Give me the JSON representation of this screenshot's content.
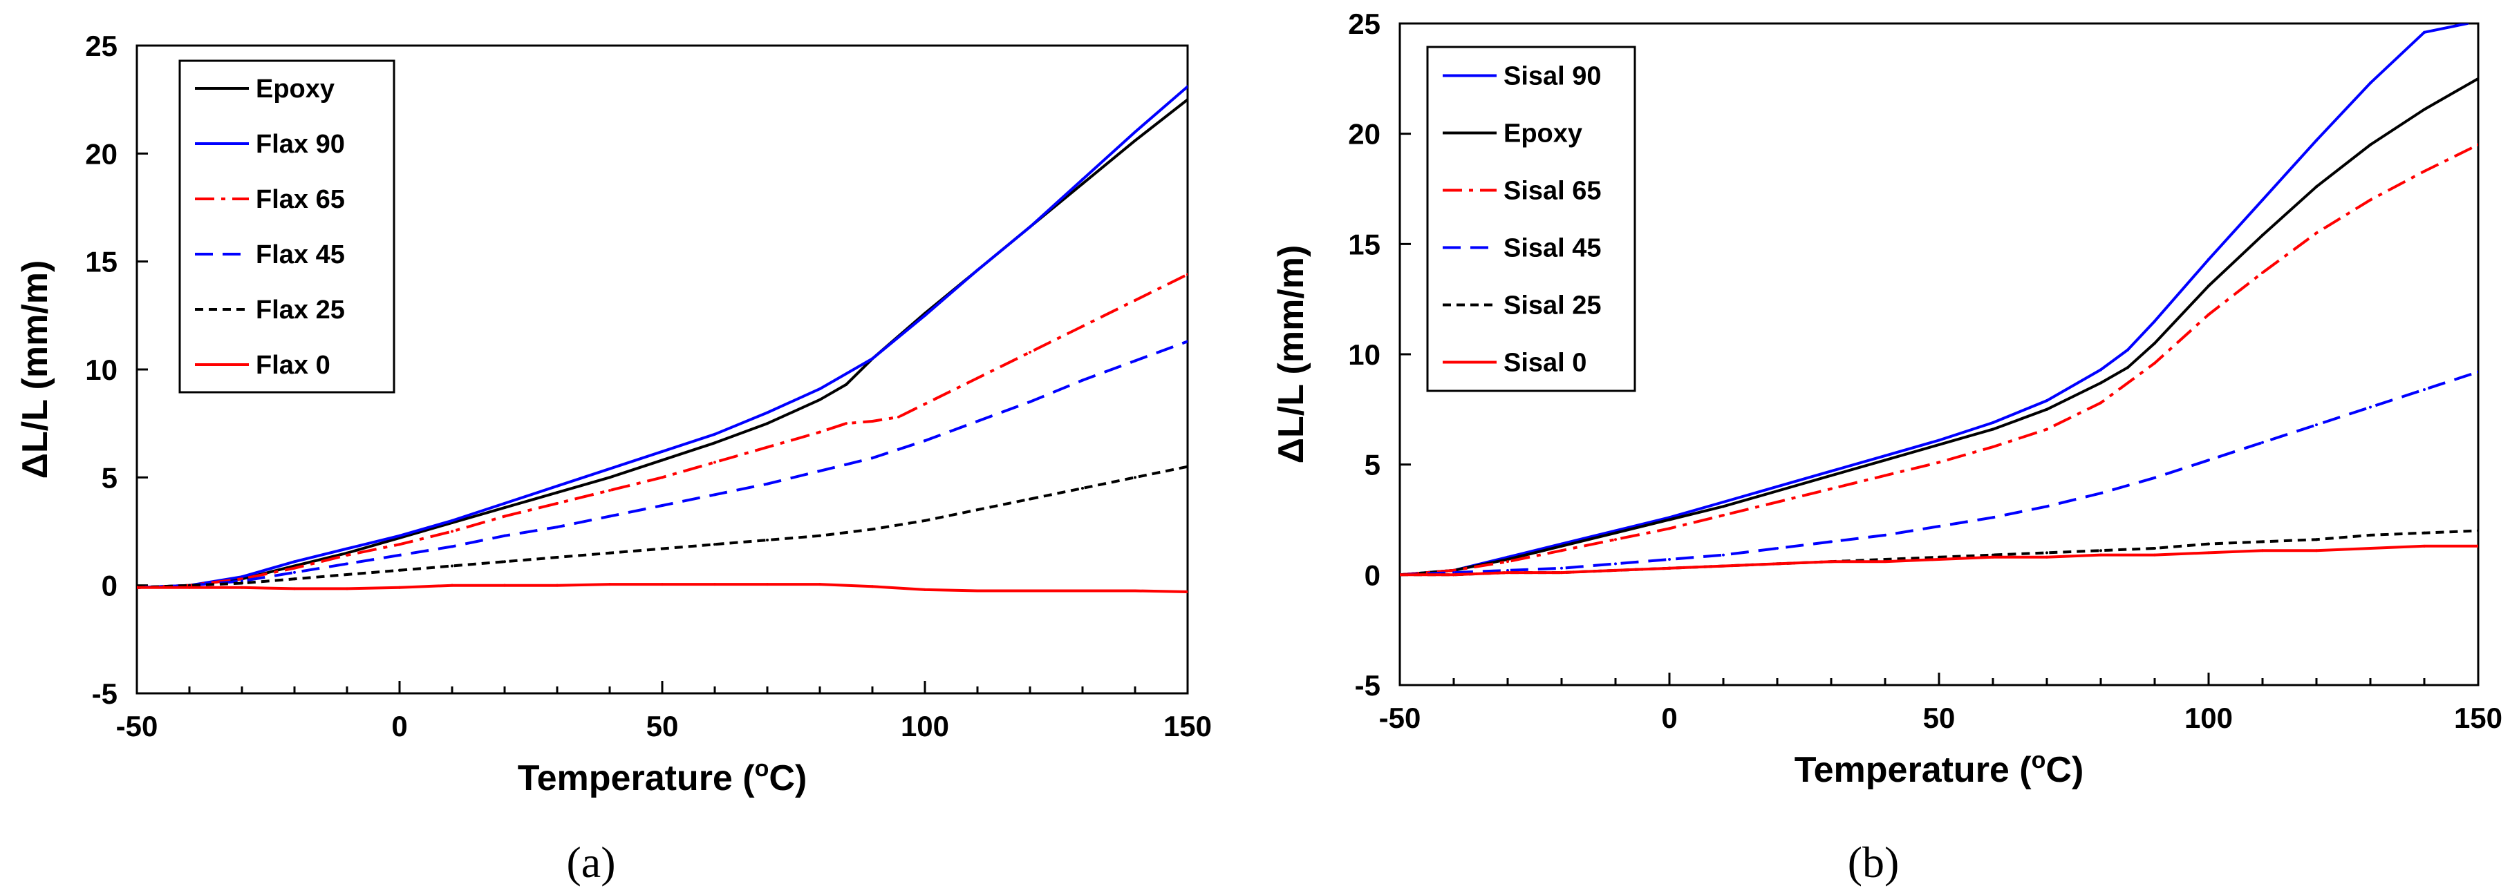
{
  "chart_data": [
    {
      "type": "line",
      "panel_label": "(a)",
      "xlabel": "Temperature (",
      "xlabel_sup": "o",
      "xlabel_end": "C)",
      "ylabel": "ΔL/L (mm/m)",
      "xlim": [
        -50,
        150
      ],
      "ylim": [
        -5,
        25
      ],
      "xticks": [
        -50,
        0,
        50,
        100,
        150
      ],
      "yticks": [
        -5,
        0,
        5,
        10,
        15,
        20,
        25
      ],
      "xtick_labels": [
        "-50",
        "0",
        "50",
        "100",
        "150"
      ],
      "ytick_labels": [
        "-5",
        "0",
        "5",
        "10",
        "15",
        "20",
        "25"
      ],
      "legend_position": "top-left",
      "series": [
        {
          "name": "Epoxy",
          "color": "#000000",
          "dash": "solid",
          "x": [
            -50,
            -40,
            -30,
            -20,
            -10,
            0,
            10,
            20,
            30,
            40,
            50,
            60,
            70,
            80,
            85,
            90,
            100,
            110,
            120,
            130,
            140,
            150
          ],
          "y": [
            -0.1,
            0,
            0.3,
            0.9,
            1.5,
            2.2,
            2.9,
            3.6,
            4.3,
            5.0,
            5.8,
            6.6,
            7.5,
            8.6,
            9.3,
            10.5,
            12.6,
            14.6,
            16.6,
            18.6,
            20.6,
            22.5
          ]
        },
        {
          "name": "Flax 90",
          "color": "#0000ff",
          "dash": "solid",
          "x": [
            -50,
            -40,
            -30,
            -20,
            -10,
            0,
            10,
            20,
            30,
            40,
            50,
            60,
            70,
            80,
            90,
            100,
            110,
            120,
            130,
            140,
            150
          ],
          "y": [
            -0.1,
            0,
            0.4,
            1.1,
            1.7,
            2.3,
            3.0,
            3.8,
            4.6,
            5.4,
            6.2,
            7.0,
            8.0,
            9.1,
            10.5,
            12.5,
            14.6,
            16.6,
            18.8,
            21.0,
            23.1
          ]
        },
        {
          "name": "Flax 65",
          "color": "#ff0000",
          "dash": "dashdot",
          "x": [
            -50,
            -40,
            -30,
            -20,
            -10,
            0,
            10,
            20,
            30,
            40,
            50,
            60,
            70,
            80,
            85,
            90,
            95,
            100,
            110,
            120,
            130,
            140,
            150
          ],
          "y": [
            -0.1,
            0,
            0.3,
            0.8,
            1.4,
            1.9,
            2.5,
            3.2,
            3.8,
            4.4,
            5.0,
            5.7,
            6.4,
            7.1,
            7.5,
            7.6,
            7.8,
            8.4,
            9.6,
            10.8,
            12.0,
            13.2,
            14.4
          ]
        },
        {
          "name": "Flax 45",
          "color": "#0000ff",
          "dash": "dashed",
          "x": [
            -50,
            -40,
            -30,
            -20,
            -10,
            0,
            10,
            20,
            30,
            40,
            50,
            60,
            70,
            80,
            90,
            100,
            110,
            120,
            130,
            140,
            150
          ],
          "y": [
            -0.1,
            0,
            0.2,
            0.6,
            1.0,
            1.4,
            1.8,
            2.3,
            2.7,
            3.2,
            3.7,
            4.2,
            4.7,
            5.3,
            5.9,
            6.7,
            7.6,
            8.5,
            9.5,
            10.4,
            11.3
          ]
        },
        {
          "name": "Flax 25",
          "color": "#000000",
          "dash": "dotted",
          "x": [
            -50,
            -40,
            -30,
            -20,
            -10,
            0,
            10,
            20,
            30,
            40,
            50,
            60,
            70,
            80,
            90,
            100,
            110,
            120,
            130,
            140,
            150
          ],
          "y": [
            -0.1,
            0,
            0.1,
            0.3,
            0.5,
            0.7,
            0.9,
            1.1,
            1.3,
            1.5,
            1.7,
            1.9,
            2.1,
            2.3,
            2.6,
            3.0,
            3.5,
            4.0,
            4.5,
            5.0,
            5.5
          ]
        },
        {
          "name": "Flax 0",
          "color": "#ff0000",
          "dash": "solid",
          "x": [
            -50,
            -40,
            -30,
            -20,
            -10,
            0,
            10,
            20,
            30,
            40,
            50,
            60,
            70,
            80,
            90,
            100,
            110,
            120,
            130,
            140,
            150
          ],
          "y": [
            -0.1,
            -0.1,
            -0.1,
            -0.15,
            -0.15,
            -0.1,
            0,
            0,
            0,
            0.05,
            0.05,
            0.05,
            0.05,
            0.05,
            -0.05,
            -0.2,
            -0.25,
            -0.25,
            -0.25,
            -0.25,
            -0.3
          ]
        }
      ]
    },
    {
      "type": "line",
      "panel_label": "(b)",
      "xlabel": "Temperature (",
      "xlabel_sup": "o",
      "xlabel_end": "C)",
      "ylabel": "ΔL/L (mm/m)",
      "xlim": [
        -50,
        150
      ],
      "ylim": [
        -5,
        25
      ],
      "xticks": [
        -50,
        0,
        50,
        100,
        150
      ],
      "yticks": [
        -5,
        0,
        5,
        10,
        15,
        20,
        25
      ],
      "xtick_labels": [
        "-50",
        "0",
        "50",
        "100",
        "150"
      ],
      "ytick_labels": [
        "-5",
        "0",
        "5",
        "10",
        "15",
        "20",
        "25"
      ],
      "legend_position": "top-left",
      "series": [
        {
          "name": "Sisal 90",
          "color": "#0000ff",
          "dash": "solid",
          "x": [
            -50,
            -40,
            -30,
            -20,
            -10,
            0,
            10,
            20,
            30,
            40,
            50,
            60,
            70,
            80,
            85,
            90,
            100,
            110,
            120,
            130,
            140,
            148
          ],
          "y": [
            0,
            0.2,
            0.8,
            1.4,
            2.0,
            2.6,
            3.3,
            4.0,
            4.7,
            5.4,
            6.1,
            6.9,
            7.9,
            9.3,
            10.2,
            11.5,
            14.3,
            17.0,
            19.7,
            22.3,
            24.6,
            25.0
          ]
        },
        {
          "name": "Epoxy",
          "color": "#000000",
          "dash": "solid",
          "x": [
            -50,
            -40,
            -30,
            -20,
            -10,
            0,
            10,
            20,
            30,
            40,
            50,
            60,
            70,
            80,
            85,
            90,
            100,
            110,
            120,
            130,
            140,
            150
          ],
          "y": [
            0,
            0.2,
            0.7,
            1.3,
            1.9,
            2.5,
            3.1,
            3.8,
            4.5,
            5.2,
            5.9,
            6.6,
            7.5,
            8.7,
            9.4,
            10.5,
            13.1,
            15.4,
            17.6,
            19.5,
            21.1,
            22.5
          ]
        },
        {
          "name": "Sisal 65",
          "color": "#ff0000",
          "dash": "dashdot",
          "x": [
            -50,
            -40,
            -30,
            -20,
            -10,
            0,
            10,
            20,
            30,
            40,
            50,
            60,
            70,
            80,
            90,
            100,
            110,
            120,
            130,
            140,
            150
          ],
          "y": [
            0,
            0.2,
            0.6,
            1.1,
            1.6,
            2.1,
            2.7,
            3.3,
            3.9,
            4.5,
            5.1,
            5.8,
            6.6,
            7.8,
            9.6,
            11.8,
            13.7,
            15.5,
            17.0,
            18.3,
            19.5
          ]
        },
        {
          "name": "Sisal 45",
          "color": "#0000ff",
          "dash": "dashed",
          "x": [
            -50,
            -40,
            -30,
            -20,
            -10,
            0,
            10,
            20,
            30,
            40,
            50,
            60,
            70,
            80,
            90,
            100,
            110,
            120,
            130,
            140,
            150
          ],
          "y": [
            0,
            0.1,
            0.2,
            0.3,
            0.5,
            0.7,
            0.9,
            1.2,
            1.5,
            1.8,
            2.2,
            2.6,
            3.1,
            3.7,
            4.4,
            5.2,
            6.0,
            6.8,
            7.6,
            8.4,
            9.2
          ]
        },
        {
          "name": "Sisal 25",
          "color": "#000000",
          "dash": "dotted",
          "x": [
            -50,
            -40,
            -30,
            -20,
            -10,
            0,
            10,
            20,
            30,
            40,
            50,
            60,
            70,
            80,
            90,
            100,
            110,
            120,
            130,
            140,
            150
          ],
          "y": [
            0,
            0,
            0.1,
            0.1,
            0.2,
            0.3,
            0.4,
            0.5,
            0.6,
            0.7,
            0.8,
            0.9,
            1.0,
            1.1,
            1.2,
            1.4,
            1.5,
            1.6,
            1.8,
            1.9,
            2.0
          ]
        },
        {
          "name": "Sisal 0",
          "color": "#ff0000",
          "dash": "solid",
          "x": [
            -50,
            -40,
            -30,
            -20,
            -10,
            0,
            10,
            20,
            30,
            40,
            50,
            60,
            70,
            80,
            90,
            100,
            110,
            120,
            130,
            140,
            150
          ],
          "y": [
            0,
            0,
            0.1,
            0.1,
            0.2,
            0.3,
            0.4,
            0.5,
            0.6,
            0.6,
            0.7,
            0.8,
            0.8,
            0.9,
            0.9,
            1.0,
            1.1,
            1.1,
            1.2,
            1.3,
            1.3
          ]
        }
      ]
    }
  ]
}
